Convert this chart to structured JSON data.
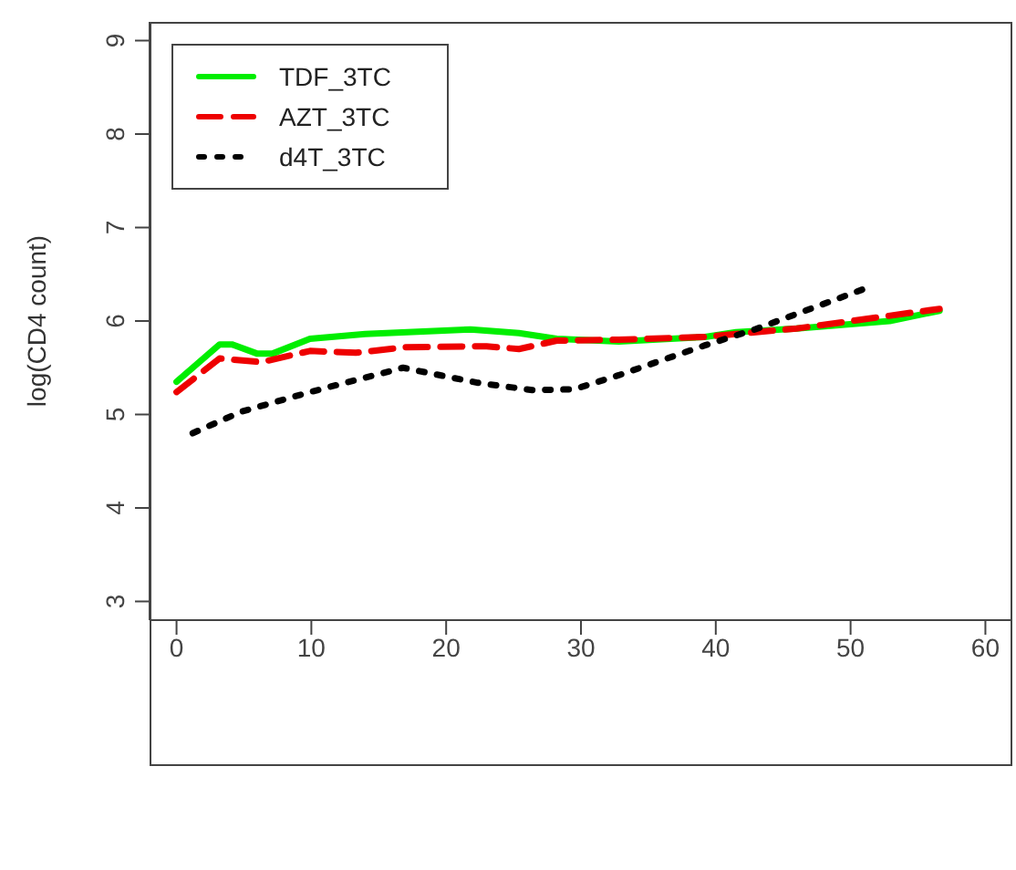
{
  "chart_data": {
    "type": "line",
    "ylabel": "log(CD4 count)",
    "xlim": [
      -2,
      62
    ],
    "xticks": [
      0,
      10,
      20,
      30,
      40,
      50,
      60
    ],
    "ylim": [
      2.8,
      9.2
    ],
    "yticks": [
      3,
      4,
      5,
      6,
      7,
      8,
      9
    ],
    "grid": false,
    "legend": "top left",
    "marker": "none",
    "series": [
      {
        "name": "TDF_3TC",
        "color": "#00ee00",
        "line_style": "solid",
        "x": [
          0,
          3.2,
          4.1,
          6,
          7.1,
          9.9,
          14,
          21.8,
          25.4,
          28.2,
          32.8,
          39.2,
          41.5,
          46,
          52.9,
          56.6
        ],
        "values": [
          5.35,
          5.75,
          5.75,
          5.65,
          5.65,
          5.81,
          5.86,
          5.91,
          5.87,
          5.81,
          5.78,
          5.83,
          5.88,
          5.92,
          6.0,
          6.11
        ]
      },
      {
        "name": "AZT_3TC",
        "color": "#ee0000",
        "line_style": "dashed",
        "x": [
          0,
          3.2,
          6.3,
          9.9,
          13.3,
          17,
          23,
          25.4,
          28.2,
          32.8,
          39.2,
          46,
          56.6
        ],
        "values": [
          5.24,
          5.6,
          5.56,
          5.68,
          5.66,
          5.72,
          5.73,
          5.7,
          5.79,
          5.8,
          5.83,
          5.92,
          6.13
        ]
      },
      {
        "name": "d4T_3TC",
        "color": "#000000",
        "line_style": "dotted",
        "x": [
          1.2,
          4.8,
          9.9,
          16.8,
          22.3,
          26.4,
          29.5,
          32.8,
          39.2,
          42.9,
          51.5
        ],
        "values": [
          4.8,
          5.03,
          5.24,
          5.5,
          5.34,
          5.26,
          5.27,
          5.42,
          5.74,
          5.91,
          6.37
        ]
      }
    ]
  }
}
